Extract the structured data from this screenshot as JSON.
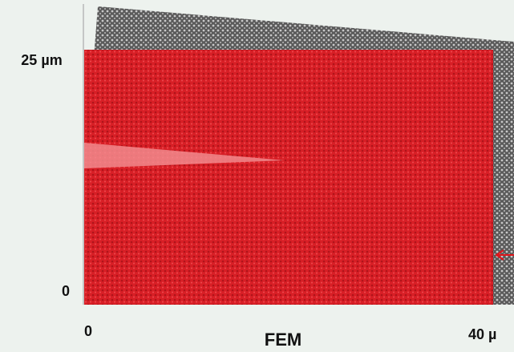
{
  "figure": {
    "y_top_label": "25 µm",
    "y_bottom_label": "0",
    "x_left_label": "0",
    "x_right_label": "40 µ",
    "caption": "FEM"
  }
}
